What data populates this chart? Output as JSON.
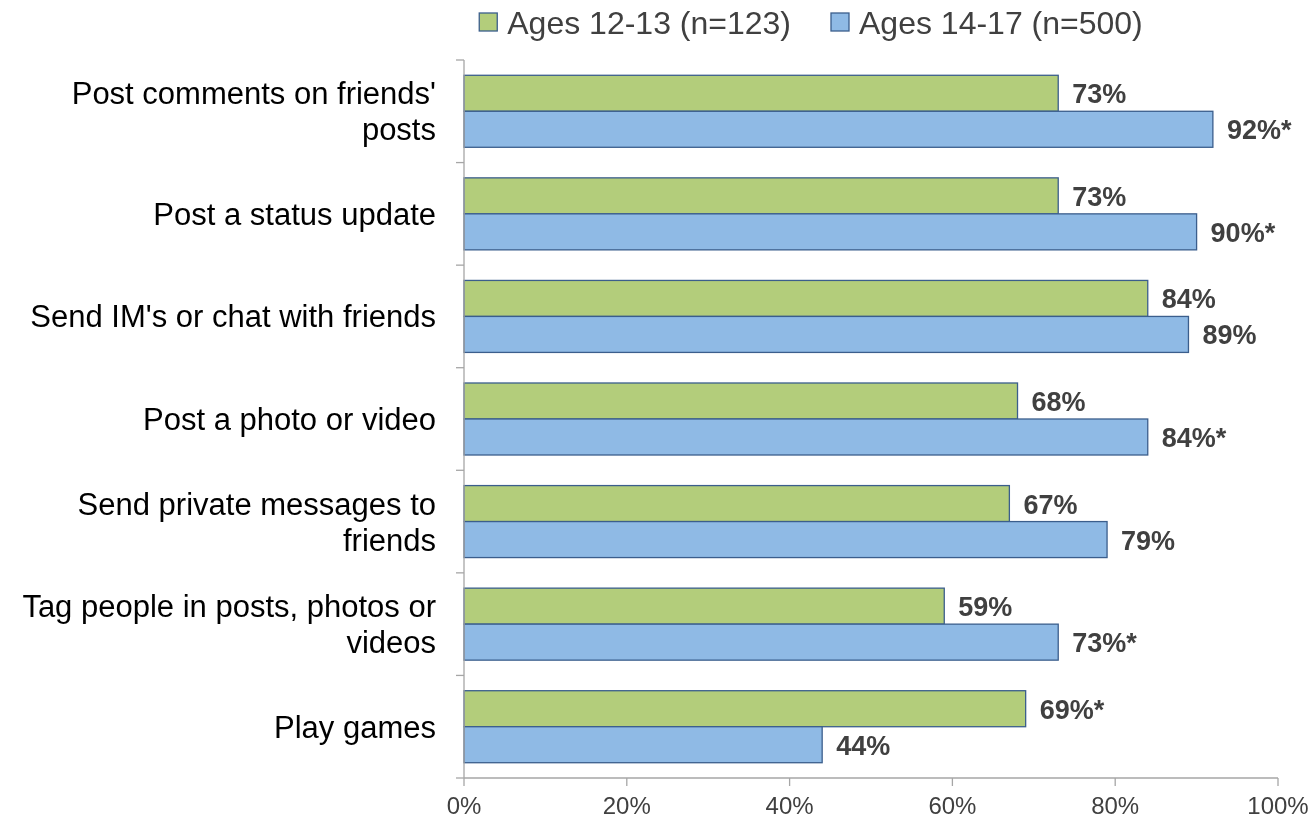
{
  "chart_data": {
    "type": "bar",
    "orientation": "horizontal",
    "categories": [
      "Post comments on friends' posts",
      "Post a status update",
      "Send IM's or chat with friends",
      "Post a photo or video",
      "Send private messages to friends",
      "Tag people in posts, photos or videos",
      "Play games"
    ],
    "series": [
      {
        "name": "Ages 12-13 (n=123)",
        "color": "#b3cd7b",
        "values": [
          73,
          73,
          84,
          68,
          67,
          59,
          69
        ],
        "value_labels": [
          "73%",
          "73%",
          "84%",
          "68%",
          "67%",
          "59%",
          "69%*"
        ]
      },
      {
        "name": "Ages 14-17 (n=500)",
        "color": "#8fbae5",
        "values": [
          92,
          90,
          89,
          84,
          79,
          73,
          44
        ],
        "value_labels": [
          "92%*",
          "90%*",
          "89%",
          "84%*",
          "79%",
          "73%*",
          "44%"
        ]
      }
    ],
    "xlim": [
      0,
      100
    ],
    "xticks": [
      {
        "value": 0,
        "label": "0%"
      },
      {
        "value": 20,
        "label": "20%"
      },
      {
        "value": 40,
        "label": "40%"
      },
      {
        "value": 60,
        "label": "60%"
      },
      {
        "value": 80,
        "label": "80%"
      },
      {
        "value": 100,
        "label": "100%"
      }
    ],
    "grid": false,
    "legend": "top"
  }
}
